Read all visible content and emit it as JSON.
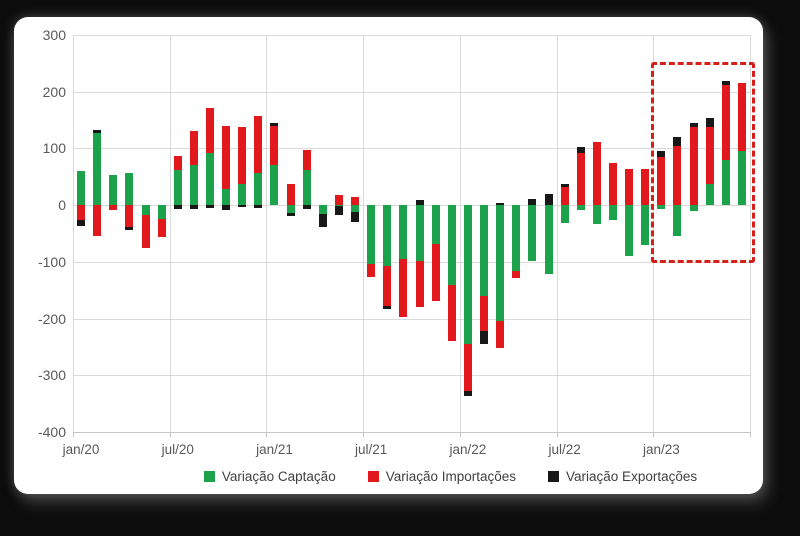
{
  "frame": {
    "background_color": "#0c0c0c",
    "panel_color": "#ffffff"
  },
  "chart_data": {
    "type": "bar",
    "stacked": true,
    "title": "",
    "xlabel": "",
    "ylabel": "",
    "ylim": [
      -400,
      300
    ],
    "grid": true,
    "grid_color": "#d9d9d9",
    "axis_text_color": "#595959",
    "legend_text_color": "#3f3f3f",
    "legend_position": "bottom",
    "y_ticks": [
      300,
      200,
      100,
      0,
      -100,
      -200,
      -300,
      -400
    ],
    "x_tick_labels": [
      "jan/20",
      "jul/20",
      "jan/21",
      "jul/21",
      "jan/22",
      "jul/22",
      "jan/23"
    ],
    "x_tick_every_n_months": 6,
    "categories": [
      "jan/20",
      "fev/20",
      "mar/20",
      "abr/20",
      "mai/20",
      "jun/20",
      "jul/20",
      "ago/20",
      "set/20",
      "out/20",
      "nov/20",
      "dez/20",
      "jan/21",
      "fev/21",
      "mar/21",
      "abr/21",
      "mai/21",
      "jun/21",
      "jul/21",
      "ago/21",
      "set/21",
      "out/21",
      "nov/21",
      "dez/21",
      "jan/22",
      "fev/22",
      "mar/22",
      "abr/22",
      "mai/22",
      "jun/22",
      "jul/22",
      "ago/22",
      "set/22",
      "out/22",
      "nov/22",
      "dez/22",
      "jan/23",
      "fev/23",
      "mar/23",
      "abr/23",
      "mai/23",
      "jun/23"
    ],
    "series": [
      {
        "name": "Variação Captação",
        "color": "#1da24c",
        "values": [
          61,
          128,
          54,
          57,
          -18,
          -25,
          62,
          70,
          92,
          28,
          38,
          57,
          71,
          -13,
          62,
          -15,
          -2,
          -12,
          -103,
          -108,
          -95,
          -99,
          -69,
          -140,
          -245,
          -160,
          -205,
          -117,
          -98,
          -122,
          -32,
          -8,
          -34,
          -27,
          -89,
          -71,
          -6,
          -55,
          -10,
          37,
          80,
          95
        ]
      },
      {
        "name": "Variação Importações",
        "color": "#e2191c",
        "values": [
          -26,
          -55,
          -9,
          -39,
          -57,
          -31,
          24,
          61,
          80,
          111,
          99,
          100,
          68,
          38,
          35,
          0,
          18,
          15,
          -23,
          -69,
          -103,
          -80,
          -100,
          -99,
          -83,
          -62,
          -47,
          -11,
          0,
          0,
          32,
          92,
          112,
          74,
          63,
          64,
          85,
          105,
          137,
          101,
          131,
          120
        ]
      },
      {
        "name": "Variação Exportações",
        "color": "#181818",
        "values": [
          -11,
          4,
          0,
          -4,
          0,
          0,
          -6,
          -6,
          -5,
          -8,
          -4,
          -5,
          6,
          -6,
          -6,
          -23,
          -16,
          -18,
          0,
          -7,
          0,
          9,
          0,
          0,
          -8,
          -22,
          3,
          0,
          10,
          20,
          6,
          10,
          0,
          0,
          0,
          0,
          10,
          15,
          7,
          16,
          8,
          0
        ]
      }
    ],
    "annotation_box": {
      "description": "red dashed highlight around last six months",
      "start_category": "jan/23",
      "end_category": "jun/23",
      "start_index": 36,
      "end_index": 41,
      "y_top_value": 252,
      "y_bottom_value": -92,
      "color": "#d42018"
    }
  }
}
